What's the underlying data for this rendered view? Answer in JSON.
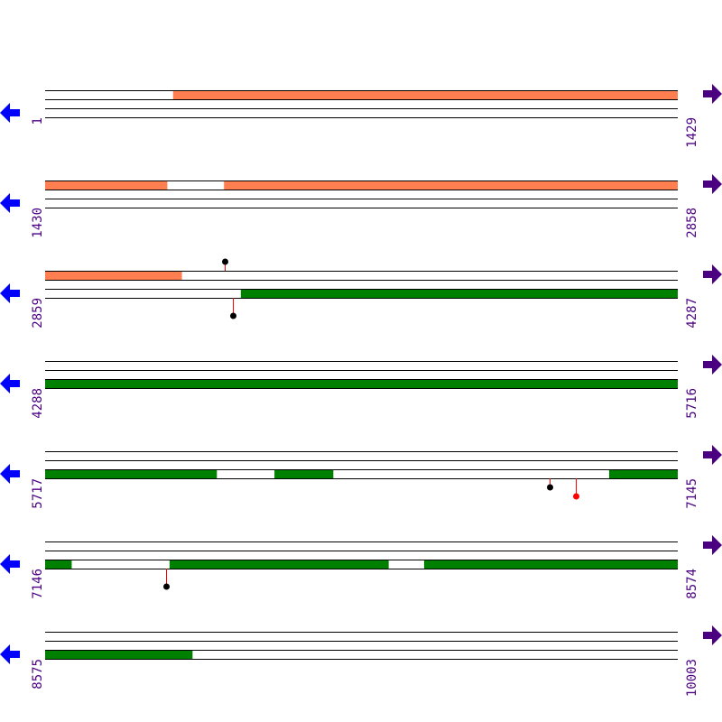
{
  "colors": {
    "line": "#000000",
    "forward_feature": "#ff7f50",
    "reverse_feature": "#008000",
    "label": "#4b0082",
    "left_arrow": "#0000ff",
    "right_arrow": "#4b0082",
    "marker_stem": "#ff0000",
    "marker_dot_default": "#000000",
    "marker_dot_highlight": "#ff0000"
  },
  "icons": {
    "left": "arrow-left-icon",
    "right": "arrow-right-icon"
  },
  "rows": [
    {
      "start": 1,
      "end": 1429,
      "start_label": "1",
      "end_label": "1429",
      "segments": [
        {
          "track": "upper",
          "from": 290,
          "to": 1429,
          "color": "forward_feature"
        }
      ],
      "markers": []
    },
    {
      "start": 1430,
      "end": 2858,
      "start_label": "1430",
      "end_label": "2858",
      "segments": [
        {
          "track": "upper",
          "from": 1430,
          "to": 1705,
          "color": "forward_feature"
        },
        {
          "track": "upper",
          "from": 1834,
          "to": 2858,
          "color": "forward_feature"
        }
      ],
      "markers": []
    },
    {
      "start": 2859,
      "end": 4287,
      "start_label": "2859",
      "end_label": "4287",
      "segments": [
        {
          "track": "upper",
          "from": 2859,
          "to": 3167,
          "color": "forward_feature"
        },
        {
          "track": "lower",
          "from": 3301,
          "to": 4287,
          "color": "reverse_feature"
        }
      ],
      "markers": [
        {
          "track": "upper",
          "pos": 3265,
          "long": false,
          "dot": "marker_dot_default"
        },
        {
          "track": "lower",
          "pos": 3283,
          "long": true,
          "dot": "marker_dot_default"
        }
      ]
    },
    {
      "start": 4288,
      "end": 5716,
      "start_label": "4288",
      "end_label": "5716",
      "segments": [
        {
          "track": "lower",
          "from": 4288,
          "to": 5716,
          "color": "reverse_feature"
        }
      ],
      "markers": []
    },
    {
      "start": 5717,
      "end": 7145,
      "start_label": "5717",
      "end_label": "7145",
      "segments": [
        {
          "track": "lower",
          "from": 5717,
          "to": 6104,
          "color": "reverse_feature"
        },
        {
          "track": "lower",
          "from": 6235,
          "to": 6367,
          "color": "reverse_feature"
        },
        {
          "track": "lower",
          "from": 6991,
          "to": 7145,
          "color": "reverse_feature"
        }
      ],
      "markers": [
        {
          "track": "lower",
          "pos": 6857,
          "long": false,
          "dot": "marker_dot_default"
        },
        {
          "track": "lower",
          "pos": 6916,
          "long": true,
          "dot": "marker_dot_highlight"
        }
      ]
    },
    {
      "start": 7146,
      "end": 8574,
      "start_label": "7146",
      "end_label": "8574",
      "segments": [
        {
          "track": "lower",
          "from": 7146,
          "to": 7205,
          "color": "reverse_feature"
        },
        {
          "track": "lower",
          "from": 7427,
          "to": 7921,
          "color": "reverse_feature"
        },
        {
          "track": "lower",
          "from": 8002,
          "to": 8574,
          "color": "reverse_feature"
        }
      ],
      "markers": [
        {
          "track": "lower",
          "pos": 7419,
          "long": true,
          "dot": "marker_dot_default"
        }
      ]
    },
    {
      "start": 8575,
      "end": 10003,
      "start_label": "8575",
      "end_label": "10003",
      "segments": [
        {
          "track": "lower",
          "from": 8575,
          "to": 8907,
          "color": "reverse_feature"
        }
      ],
      "markers": []
    }
  ]
}
